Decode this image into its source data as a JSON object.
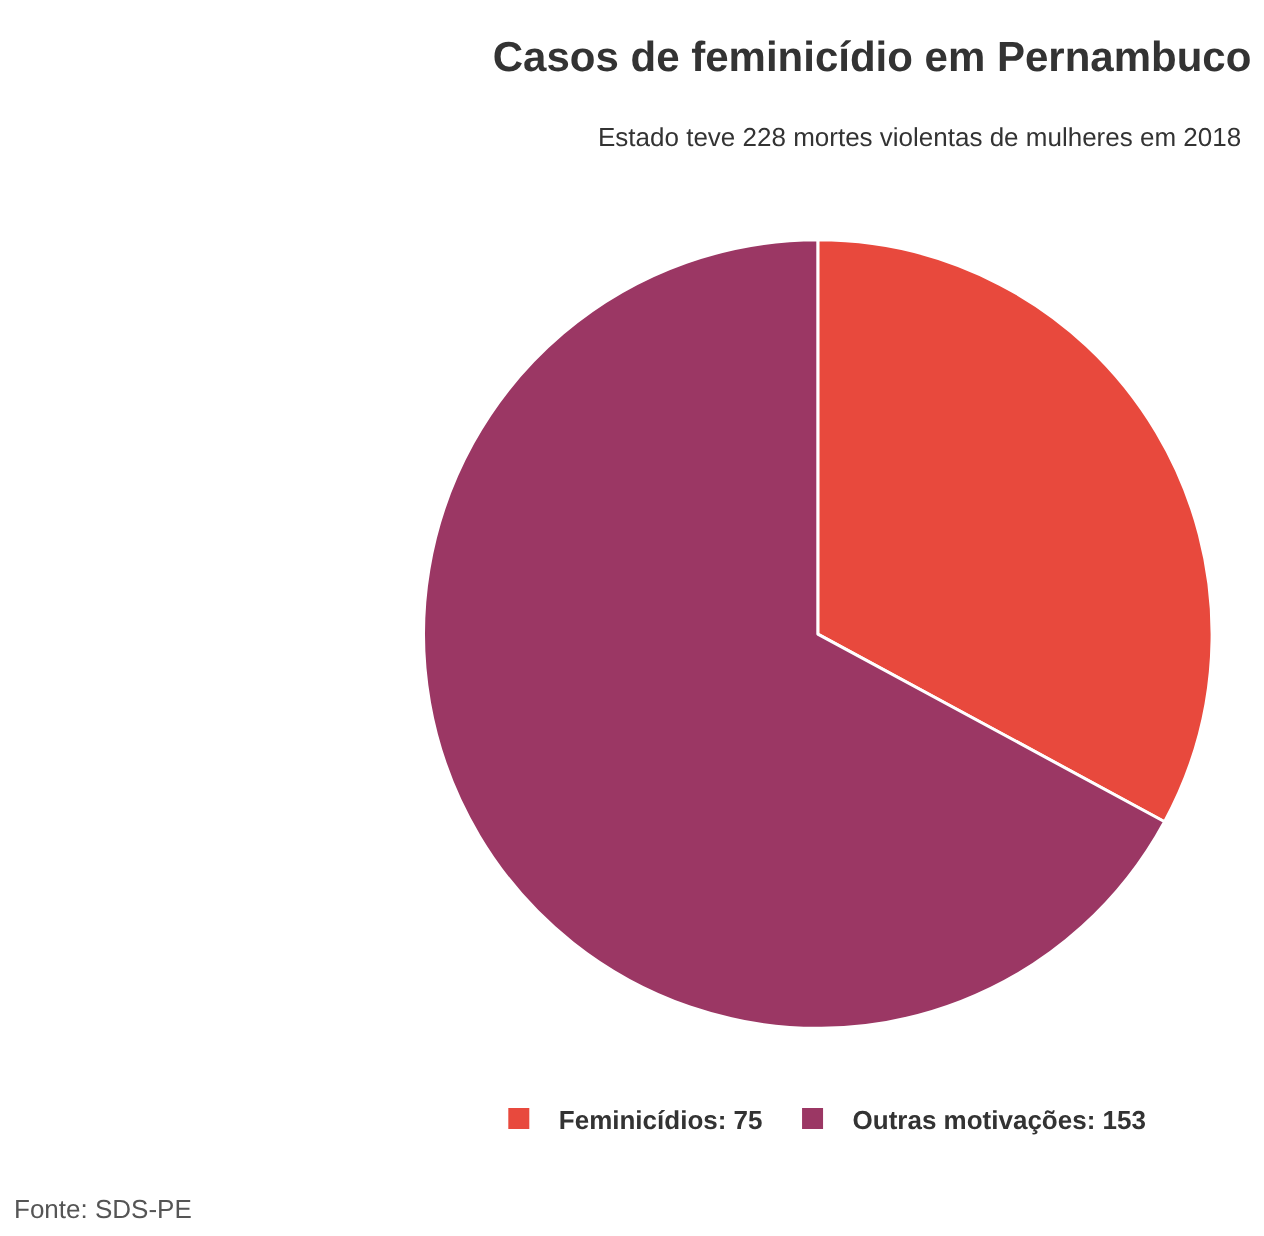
{
  "chart_data": {
    "type": "pie",
    "title": "Casos de feminicídio em Pernambuco",
    "subtitle": "Estado teve 228 mortes violentas de mulheres em 2018",
    "categories": [
      "Feminicídios: 75",
      "Outras motivações: 153"
    ],
    "values": [
      75,
      153
    ],
    "colors": [
      "#e8493d",
      "#9b3764"
    ],
    "legend": "bottom",
    "annotations": [
      "Fonte: SDS-PE"
    ]
  }
}
